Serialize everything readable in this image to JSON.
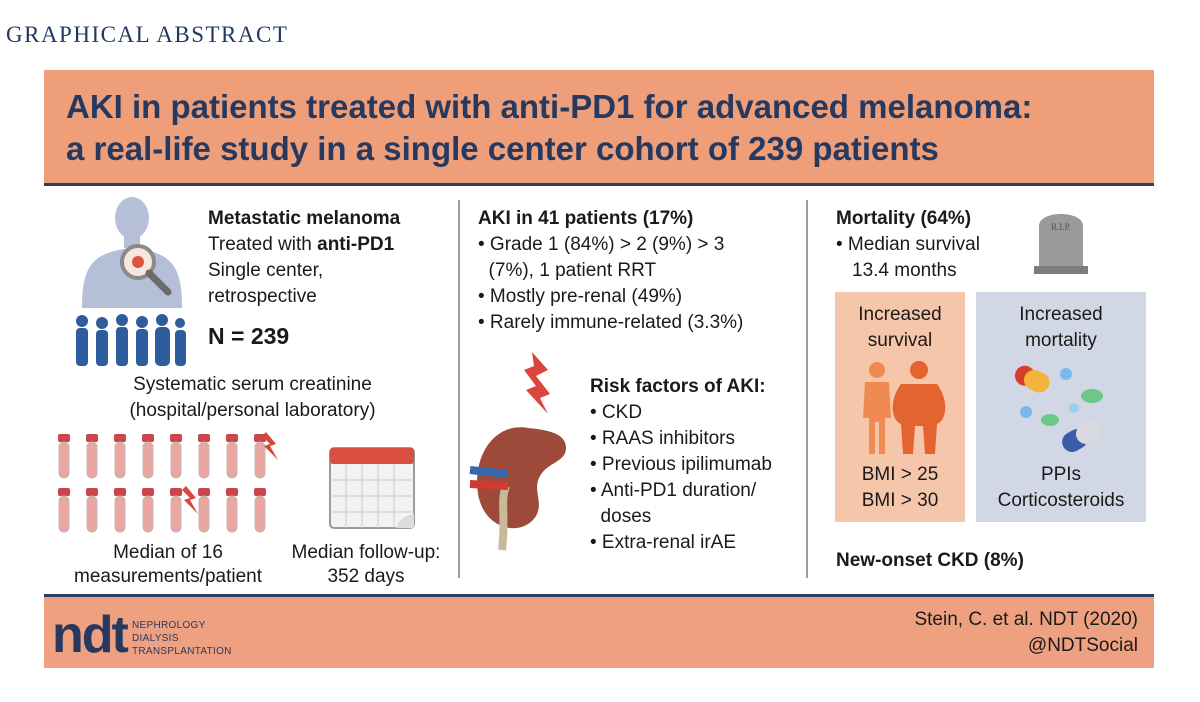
{
  "header": {
    "label": "GRAPHICAL ABSTRACT"
  },
  "title": {
    "line1": "AKI in patients treated with anti-PD1 for advanced melanoma:",
    "line2": "a real-life study in a single center cohort of 239 patients"
  },
  "col1": {
    "heading": "Metastatic melanoma",
    "treated_prefix": "Treated with ",
    "treated_drug": "anti-PD1",
    "single_center": "Single center,",
    "retrospective": "retrospective",
    "n": "N = 239",
    "creat_line1": "Systematic serum creatinine",
    "creat_line2": "(hospital/personal laboratory)",
    "median_meas_line1": "Median of 16",
    "median_meas_line2": "measurements/patient",
    "followup_line1": "Median follow-up:",
    "followup_line2": "352 days"
  },
  "col2": {
    "heading": "AKI in 41 patients (17%)",
    "bullets": [
      "• Grade 1 (84%) > 2 (9%) > 3",
      "  (7%), 1 patient RRT",
      "• Mostly pre-renal (49%)",
      "• Rarely immune-related (3.3%)"
    ],
    "risk_heading": "Risk factors of AKI:",
    "risk_items": [
      "• CKD",
      "• RAAS inhibitors",
      "• Previous ipilimumab",
      "• Anti-PD1 duration/",
      "  doses",
      "• Extra-renal irAE"
    ]
  },
  "col3": {
    "heading": "Mortality (64%)",
    "survival_line1": "• Median survival",
    "survival_line2": "13.4 months",
    "tombstone_text": "R.I.P.",
    "increased_survival_line1": "Increased",
    "increased_survival_line2": "survival",
    "bmi1": "BMI > 25",
    "bmi2": "BMI > 30",
    "increased_mortality_line1": "Increased",
    "increased_mortality_line2": "mortality",
    "ppis": "PPIs",
    "corticosteroids": "Corticosteroids",
    "new_onset": "New-onset CKD (8%)"
  },
  "footer": {
    "logo": "ndt",
    "logo_line1": "NEPHROLOGY",
    "logo_line2": "DIALYSIS",
    "logo_line3": "TRANSPLANTATION",
    "citation": "Stein, C. et al. NDT (2020)",
    "social": "@NDTSocial"
  },
  "colors": {
    "banner": "#ee9f7a",
    "navy": "#27395e",
    "survival_box": "#f6c6aa",
    "mortality_box": "#d2d7e6"
  }
}
